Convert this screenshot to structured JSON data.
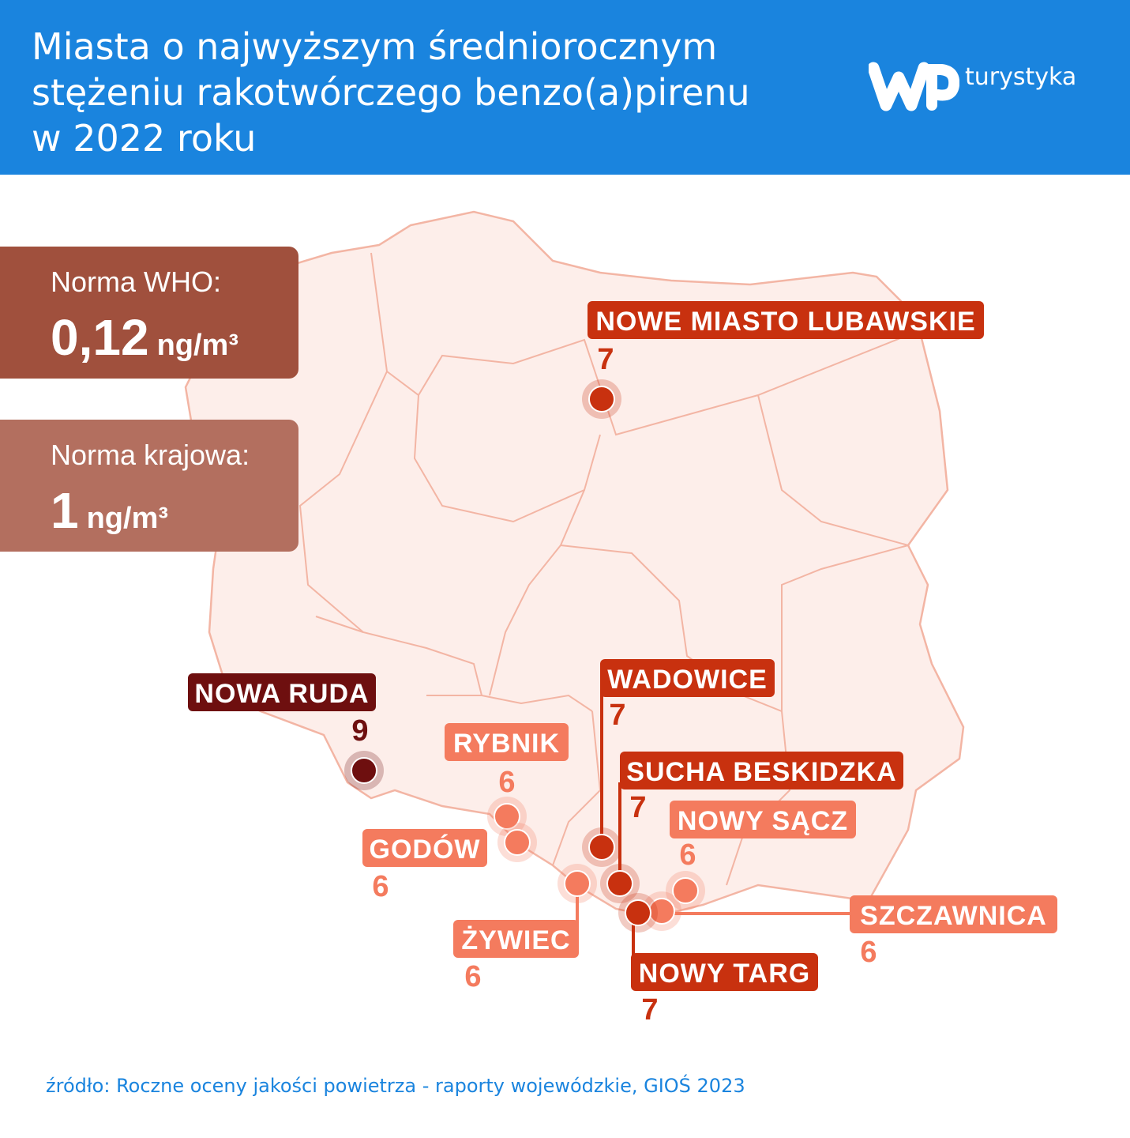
{
  "header": {
    "title_lines": [
      "Miasta o najwyższym średniorocznym",
      "stężeniu rakotwórczego benzo(a)pirenu",
      "w 2022 roku"
    ],
    "logo_text": "turystyka"
  },
  "norms": [
    {
      "label": "Norma WHO:",
      "value": "0,12",
      "unit": "ng/m³"
    },
    {
      "label": "Norma krajowa:",
      "value": "1",
      "unit": "ng/m³"
    }
  ],
  "cities": [
    {
      "name": "NOWE MIASTO LUBAWSKIE",
      "value": 7,
      "color": "#c8310f"
    },
    {
      "name": "NOWA RUDA",
      "value": 9,
      "color": "#6e0f0f"
    },
    {
      "name": "RYBNIK",
      "value": 6,
      "color": "#f47b5e"
    },
    {
      "name": "GODÓW",
      "value": 6,
      "color": "#f47b5e"
    },
    {
      "name": "WADOWICE",
      "value": 7,
      "color": "#c8310f"
    },
    {
      "name": "SUCHA BESKIDZKA",
      "value": 7,
      "color": "#c8310f"
    },
    {
      "name": "NOWY SĄCZ",
      "value": 6,
      "color": "#f47b5e"
    },
    {
      "name": "ŻYWIEC",
      "value": 6,
      "color": "#f47b5e"
    },
    {
      "name": "SZCZAWNICA",
      "value": 6,
      "color": "#f47b5e"
    },
    {
      "name": "NOWY TARG",
      "value": 7,
      "color": "#c8310f"
    }
  ],
  "source": "źródło: Roczne oceny jakości powietrza - raporty wojewódzkie, GIOŚ 2023"
}
